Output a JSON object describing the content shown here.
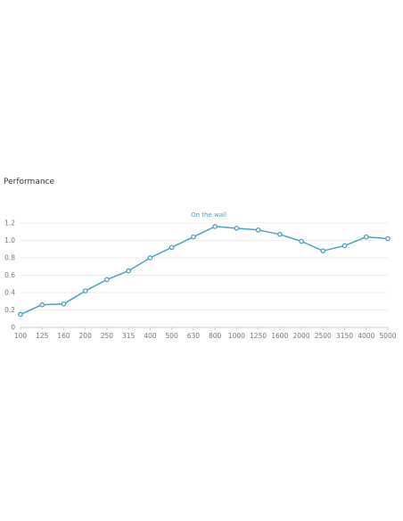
{
  "page": {
    "section_title": "Performance"
  },
  "chart_data": {
    "type": "line",
    "title": "",
    "xlabel": "",
    "ylabel": "",
    "categories": [
      "100",
      "125",
      "160",
      "200",
      "250",
      "315",
      "400",
      "500",
      "630",
      "800",
      "1000",
      "1250",
      "1600",
      "2000",
      "2500",
      "3150",
      "4000",
      "5000"
    ],
    "series": [
      {
        "name": "On the wall",
        "color": "#4aa3c0",
        "values": [
          0.15,
          0.26,
          0.27,
          0.42,
          0.55,
          0.65,
          0.8,
          0.92,
          1.04,
          1.16,
          1.14,
          1.12,
          1.07,
          0.99,
          0.88,
          0.94,
          1.04,
          1.02
        ]
      }
    ],
    "ylim": [
      0,
      1.2
    ],
    "yticks": [
      "0",
      "0.2",
      "0.4",
      "0.6",
      "0.8",
      "1.0",
      "1.2"
    ],
    "grid": true,
    "legend": "none"
  }
}
